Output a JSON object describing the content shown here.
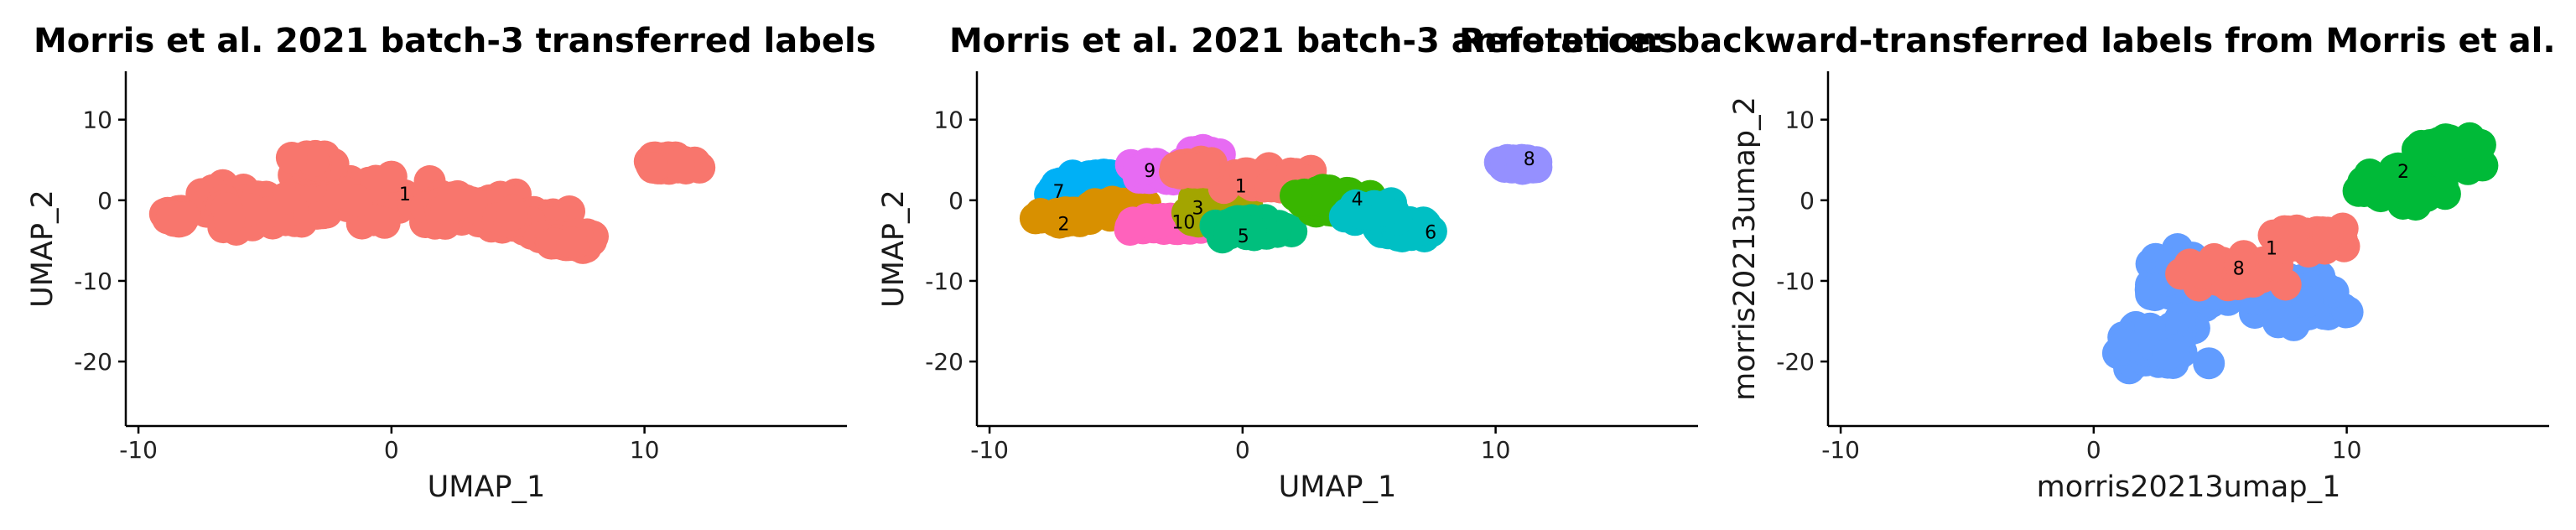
{
  "colors": {
    "c1": "#F8766D",
    "c2": "#D89000",
    "c3": "#A3A500",
    "c4": "#39B600",
    "c5": "#00BF7D",
    "c6": "#00BFC4",
    "c7": "#00B0F6",
    "c8": "#9590FF",
    "c9": "#E76BF3",
    "c10": "#FF62BC",
    "blue": "#619CFF",
    "green": "#00BA38"
  },
  "chart_data": [
    {
      "type": "scatter",
      "title": "Morris et al. 2021 batch-3 transferred labels",
      "xlabel": "UMAP_1",
      "ylabel": "UMAP_2",
      "xlim": [
        -10.5,
        18
      ],
      "ylim": [
        -28,
        16
      ],
      "xticks": [
        -10,
        0,
        10
      ],
      "yticks": [
        -20,
        -10,
        0,
        10
      ],
      "clusters": [
        {
          "label": "1",
          "color": "#F8766D",
          "label_pos": [
            0.3,
            0.7
          ],
          "blobs": [
            [
              -2,
              0,
              6.5,
              4.5
            ],
            [
              -6,
              -1,
              2.5,
              3
            ],
            [
              3,
              -1,
              3,
              3
            ],
            [
              5.5,
              -2.5,
              2,
              2.5
            ],
            [
              -8.5,
              -2,
              0.6,
              1
            ],
            [
              7,
              -5,
              1.5,
              1.2
            ],
            [
              11,
              4.5,
              1.5,
              1.2
            ],
            [
              -3,
              4.5,
              1.2,
              1.5
            ]
          ]
        }
      ]
    },
    {
      "type": "scatter",
      "title": "Morris et al. 2021 batch-3 annotations",
      "xlabel": "UMAP_1",
      "ylabel": "UMAP_2",
      "xlim": [
        -10.5,
        18
      ],
      "ylim": [
        -28,
        16
      ],
      "xticks": [
        -10,
        0,
        10
      ],
      "yticks": [
        -20,
        -10,
        0,
        10
      ],
      "clusters": [
        {
          "label": "7",
          "color": "#00B0F6",
          "label_pos": [
            -7.5,
            1
          ],
          "blobs": [
            [
              -6.5,
              1.5,
              1.5,
              2
            ],
            [
              -5.5,
              2.5,
              1,
              1
            ]
          ]
        },
        {
          "label": "2",
          "color": "#D89000",
          "label_pos": [
            -7.3,
            -3
          ],
          "blobs": [
            [
              -7,
              -2,
              1.5,
              1
            ],
            [
              -5,
              -1,
              1.5,
              1.5
            ]
          ]
        },
        {
          "label": "9",
          "color": "#E76BF3",
          "label_pos": [
            -3.9,
            3.6
          ],
          "blobs": [
            [
              -3,
              3.5,
              1.8,
              1.5
            ],
            [
              -1.5,
              5.5,
              0.8,
              1
            ]
          ]
        },
        {
          "label": "10",
          "color": "#FF62BC",
          "label_pos": [
            -2.8,
            -2.8
          ],
          "blobs": [
            [
              -3,
              -3,
              2,
              1
            ]
          ]
        },
        {
          "label": "3",
          "color": "#A3A500",
          "label_pos": [
            -2,
            -1
          ],
          "blobs": [
            [
              -1,
              0,
              1.5,
              2
            ],
            [
              -1.5,
              -2,
              1.2,
              1
            ]
          ]
        },
        {
          "label": "1",
          "color": "#F8766D",
          "label_pos": [
            -0.3,
            1.7
          ],
          "blobs": [
            [
              1,
              2.5,
              2.5,
              2
            ],
            [
              -2,
              4,
              1,
              1
            ]
          ]
        },
        {
          "label": "5",
          "color": "#00BF7D",
          "label_pos": [
            -0.2,
            -4.5
          ],
          "blobs": [
            [
              0.5,
              -3.5,
              2.2,
              1.5
            ]
          ]
        },
        {
          "label": "4",
          "color": "#39B600",
          "label_pos": [
            4.3,
            0.1
          ],
          "blobs": [
            [
              3.5,
              0,
              2,
              2
            ]
          ]
        },
        {
          "label": "6",
          "color": "#00BFC4",
          "label_pos": [
            7.2,
            -4
          ],
          "blobs": [
            [
              6.5,
              -3.5,
              1.5,
              1.5
            ],
            [
              5,
              -1.5,
              1.5,
              1.5
            ]
          ]
        },
        {
          "label": "8",
          "color": "#9590FF",
          "label_pos": [
            11.1,
            5.1
          ],
          "blobs": [
            [
              11,
              4.5,
              1.2,
              1
            ]
          ]
        }
      ]
    },
    {
      "type": "scatter",
      "title": "Reference: backward-transferred labels from Morris et al.",
      "xlabel": "morris20213umap_1",
      "ylabel": "morris20213umap_2",
      "xlim": [
        -10.5,
        18
      ],
      "ylim": [
        -28,
        16
      ],
      "xticks": [
        -10,
        0,
        10
      ],
      "yticks": [
        -20,
        -10,
        0,
        10
      ],
      "clusters": [
        {
          "label": "8",
          "color": "#619CFF",
          "label_pos": [
            5.5,
            -8.5
          ],
          "blobs": [
            [
              4,
              -10,
              3,
              5
            ],
            [
              2.5,
              -18,
              2.5,
              4
            ],
            [
              8,
              -12,
              3,
              5
            ]
          ]
        },
        {
          "label": "2",
          "color": "#00BA38",
          "label_pos": [
            12,
            3.5
          ],
          "blobs": [
            [
              12,
              2,
              3,
              3.5
            ],
            [
              14,
              6,
              2,
              3
            ]
          ]
        },
        {
          "label": "1",
          "color": "#F8766D",
          "label_pos": [
            6.8,
            -6
          ],
          "blobs": [
            [
              5.5,
              -9,
              2.5,
              2.5
            ],
            [
              8.5,
              -5,
              2,
              2
            ]
          ]
        }
      ]
    }
  ]
}
